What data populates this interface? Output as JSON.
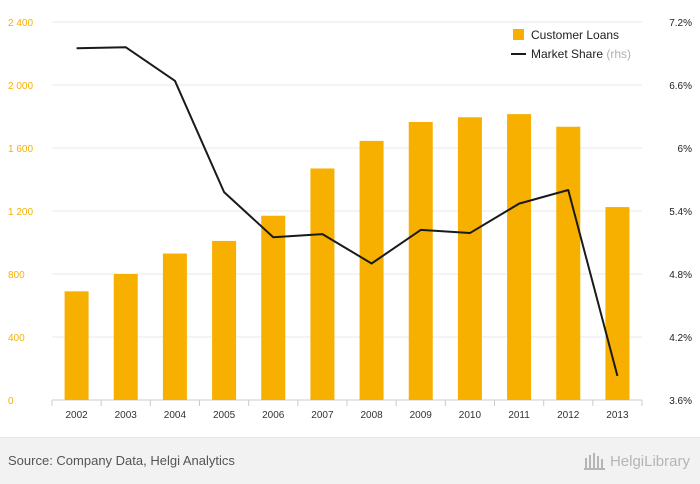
{
  "chart_data": {
    "type": "bar",
    "categories": [
      "2002",
      "2003",
      "2004",
      "2005",
      "2006",
      "2007",
      "2008",
      "2009",
      "2010",
      "2011",
      "2012",
      "2013"
    ],
    "series": [
      {
        "name": "Customer Loans",
        "kind": "bar",
        "axis": "left",
        "color": "#f7b000",
        "values": [
          690,
          800,
          930,
          1010,
          1170,
          1470,
          1645,
          1765,
          1795,
          1815,
          1735,
          1225
        ]
      },
      {
        "name": "Market Share",
        "name_suffix": "(rhs)",
        "kind": "line",
        "axis": "right",
        "color": "#1a1a1a",
        "values": [
          6.95,
          6.96,
          6.64,
          5.58,
          5.15,
          5.18,
          4.9,
          5.22,
          5.19,
          5.47,
          5.6,
          3.83
        ]
      }
    ],
    "y_left": {
      "ylim": [
        0,
        2400
      ],
      "ticks": [
        0,
        400,
        800,
        1200,
        1600,
        2000,
        2400
      ],
      "tick_labels": [
        "0",
        "400",
        "800",
        "1 200",
        "1 600",
        "2 000",
        "2 400"
      ],
      "tick_color": "#f7b000"
    },
    "y_right": {
      "ylim": [
        3.6,
        7.2
      ],
      "ticks": [
        3.6,
        4.2,
        4.8,
        5.4,
        6.0,
        6.6,
        7.2
      ],
      "tick_labels": [
        "3.6%",
        "4.2%",
        "4.8%",
        "5.4%",
        "6%",
        "6.6%",
        "7.2%"
      ]
    },
    "grid": true,
    "legend_position": "top-right"
  },
  "footer": {
    "source": "Source: Company Data, Helgi Analytics",
    "logo_text": "HelgiLibrary"
  }
}
